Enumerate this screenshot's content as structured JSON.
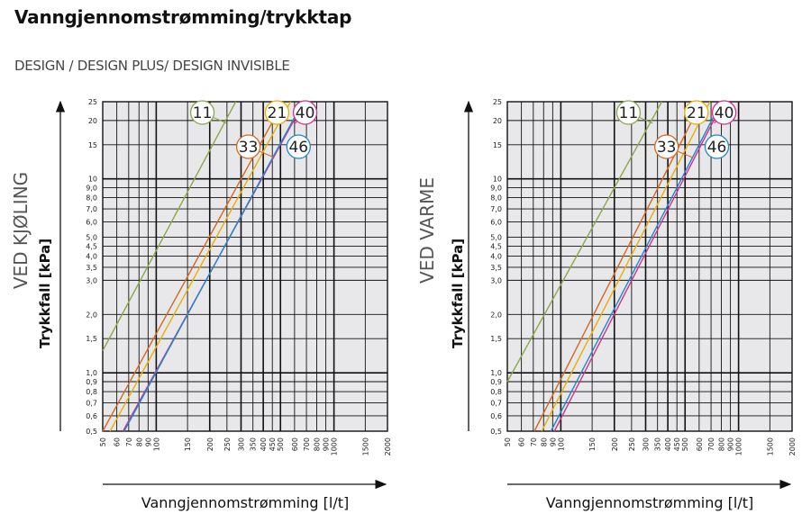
{
  "title": "Vanngjennomstrømming/trykktap",
  "subtitle": "DESIGN / DESIGN PLUS/ DESIGN INVISIBLE",
  "colors": {
    "11": "#8aa84a",
    "21": "#e8b000",
    "33": "#d2691e",
    "40": "#d4308e",
    "46": "#1e88c8",
    "grid": "#111111",
    "plot_bg": "#e8e8ea"
  },
  "chart_data": [
    {
      "type": "line",
      "condition": "VED KJØLING",
      "ylabel": "Trykkfall [kPa]",
      "xlabel": "Vanngjennomstrømming [l/t]",
      "log_x": true,
      "log_y": true,
      "xlim": [
        50,
        2000
      ],
      "ylim": [
        0.5,
        25
      ],
      "x_ticks": [
        50,
        60,
        70,
        80,
        90,
        100,
        150,
        200,
        250,
        300,
        350,
        400,
        450,
        500,
        600,
        700,
        800,
        900,
        1000,
        1500,
        2000
      ],
      "y_ticks": [
        "0,5",
        "0,6",
        "0,7",
        "0,8",
        "0,9",
        "1,0",
        "1,5",
        "2,0",
        "3,0",
        "3,5",
        "4,0",
        "4,5",
        "5,0",
        "6,0",
        "7,0",
        "8,0",
        "9,0",
        "10",
        "15",
        "20",
        "25"
      ],
      "series": [
        {
          "name": "11",
          "x": [
            50,
            280
          ],
          "y": [
            1.3,
            25
          ]
        },
        {
          "name": "33",
          "x": [
            50,
            520
          ],
          "y": [
            0.5,
            25
          ]
        },
        {
          "name": "21",
          "x": [
            55,
            570
          ],
          "y": [
            0.5,
            25
          ]
        },
        {
          "name": "40",
          "x": [
            65,
            680
          ],
          "y": [
            0.5,
            25
          ]
        },
        {
          "name": "46",
          "x": [
            66,
            670
          ],
          "y": [
            0.5,
            25
          ]
        }
      ]
    },
    {
      "type": "line",
      "condition": "VED VARME",
      "ylabel": "Trykkfall [kPa]",
      "xlabel": "Vanngjennomstrømming [l/t]",
      "log_x": true,
      "log_y": true,
      "xlim": [
        50,
        2000
      ],
      "ylim": [
        0.5,
        25
      ],
      "x_ticks": [
        50,
        60,
        70,
        80,
        90,
        100,
        150,
        200,
        250,
        300,
        350,
        400,
        450,
        500,
        600,
        700,
        800,
        900,
        1000,
        1500,
        2000
      ],
      "y_ticks": [
        "0,5",
        "0,6",
        "0,7",
        "0,8",
        "0,9",
        "1,0",
        "1,5",
        "2,0",
        "3,0",
        "3,5",
        "4,0",
        "4,5",
        "5,0",
        "6,0",
        "7,0",
        "8,0",
        "9,0",
        "10",
        "15",
        "20",
        "25"
      ],
      "series": [
        {
          "name": "11",
          "x": [
            50,
            370
          ],
          "y": [
            0.9,
            25
          ]
        },
        {
          "name": "33",
          "x": [
            71,
            620
          ],
          "y": [
            0.5,
            25
          ]
        },
        {
          "name": "21",
          "x": [
            78,
            690
          ],
          "y": [
            0.5,
            25
          ]
        },
        {
          "name": "40",
          "x": [
            92,
            820
          ],
          "y": [
            0.5,
            25
          ]
        },
        {
          "name": "46",
          "x": [
            88,
            800
          ],
          "y": [
            0.5,
            25
          ]
        }
      ]
    }
  ]
}
